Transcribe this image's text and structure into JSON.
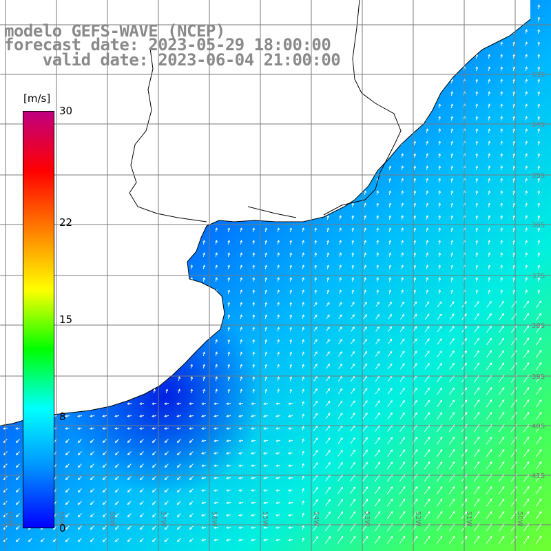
{
  "title": {
    "line1": "modelo GEFS-WAVE (NCEP)",
    "line2": "forecast date: 2023-05-29 18:00:00",
    "line3": "    valid date: 2023-06-04 21:00:00"
  },
  "colorbar": {
    "unit": "[m/s]",
    "ticks": [
      "30",
      "22",
      "15",
      "8",
      "0"
    ],
    "tick_values": [
      30,
      22,
      15,
      8,
      0
    ],
    "range": [
      0,
      30
    ],
    "colors": [
      "#0000ff",
      "#0090ff",
      "#00ffff",
      "#00ff00",
      "#ffff00",
      "#ff8000",
      "#ff0000",
      "#c00080"
    ]
  },
  "map": {
    "lat_labels": [
      "33S",
      "34S",
      "35S",
      "36S",
      "37S",
      "38S",
      "39S",
      "40S",
      "41S"
    ],
    "lon_labels": [
      "60W",
      "59W",
      "58W",
      "57W",
      "56W",
      "55W",
      "54W",
      "53W",
      "52W",
      "51W",
      "50W"
    ],
    "land_color": "#ffffff",
    "grid_color": "#7a7a7a",
    "arrow_color": "#ffffff"
  }
}
